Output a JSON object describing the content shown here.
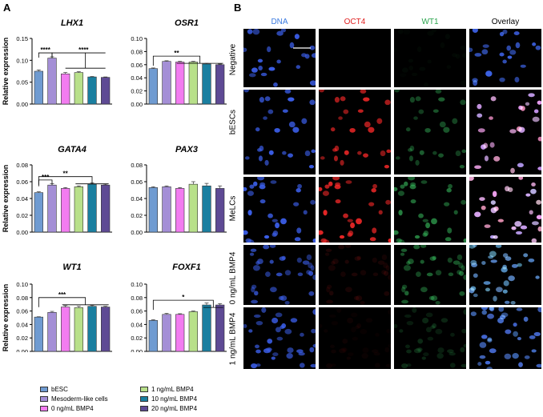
{
  "panel_a_label": "A",
  "panel_b_label": "B",
  "colors": {
    "bESC": "#6f9bd1",
    "Mesoderm-like cells": "#a48fd6",
    "0 ng/mL BMP4": "#f27cf0",
    "1 ng/mL BMP4": "#b8e08a",
    "10 ng/mL BMP4": "#1a7fa0",
    "20 ng/mL BMP4": "#5e4a94"
  },
  "legend": [
    "bESC",
    "Mesoderm-like cells",
    "0 ng/mL BMP4",
    "1 ng/mL BMP4",
    "10 ng/mL BMP4",
    "20 ng/mL BMP4"
  ],
  "chart_data": [
    {
      "type": "bar",
      "title": "LHX1",
      "ylabel": "Relative expression",
      "categories": [
        "bESC",
        "Mesoderm-like cells",
        "0 ng/mL BMP4",
        "1 ng/mL BMP4",
        "10 ng/mL BMP4",
        "20 ng/mL BMP4"
      ],
      "values": [
        0.075,
        0.105,
        0.069,
        0.072,
        0.062,
        0.061
      ],
      "errors": [
        0.003,
        0.003,
        0.003,
        0.002,
        0.001,
        0.001
      ],
      "ylim": [
        0,
        0.15
      ],
      "yticks": [
        "0.00",
        "0.05",
        "0.10",
        "0.15"
      ],
      "ytick_values": [
        0,
        0.05,
        0.1,
        0.15
      ],
      "annotations": [
        {
          "from": 0,
          "to": 1,
          "y": 0.117,
          "label": "****"
        },
        {
          "from": 1,
          "to": 5,
          "y": 0.117,
          "label": "****"
        }
      ]
    },
    {
      "type": "bar",
      "title": "OSR1",
      "ylabel": "",
      "categories": [
        "bESC",
        "Mesoderm-like cells",
        "0 ng/mL BMP4",
        "1 ng/mL BMP4",
        "10 ng/mL BMP4",
        "20 ng/mL BMP4"
      ],
      "values": [
        0.054,
        0.065,
        0.064,
        0.064,
        0.061,
        0.06
      ],
      "errors": [
        0.001,
        0.001,
        0.001,
        0.001,
        0.001,
        0.001
      ],
      "ylim": [
        0,
        0.1
      ],
      "yticks": [
        "0.00",
        "0.02",
        "0.04",
        "0.06",
        "0.08",
        "0.10"
      ],
      "ytick_values": [
        0,
        0.02,
        0.04,
        0.06,
        0.08,
        0.1
      ],
      "annotations": [
        {
          "from": 0,
          "to": 5,
          "y": 0.073,
          "label": "**"
        }
      ]
    },
    {
      "type": "bar",
      "title": "GATA4",
      "ylabel": "Relative expression",
      "categories": [
        "bESC",
        "Mesoderm-like cells",
        "0 ng/mL BMP4",
        "1 ng/mL BMP4",
        "10 ng/mL BMP4",
        "20 ng/mL BMP4"
      ],
      "values": [
        0.047,
        0.056,
        0.052,
        0.054,
        0.057,
        0.056
      ],
      "errors": [
        0.001,
        0.0015,
        0.001,
        0.001,
        0.0015,
        0.001
      ],
      "ylim": [
        0,
        0.08
      ],
      "yticks": [
        "0.00",
        "0.02",
        "0.04",
        "0.06",
        "0.08"
      ],
      "ytick_values": [
        0,
        0.02,
        0.04,
        0.06,
        0.08
      ],
      "annotations": [
        {
          "from": 0,
          "to": 1,
          "y": 0.062,
          "label": "***"
        },
        {
          "from": 0,
          "to": 5,
          "y": 0.066,
          "label": "**"
        }
      ]
    },
    {
      "type": "bar",
      "title": "PAX3",
      "ylabel": "",
      "categories": [
        "bESC",
        "Mesoderm-like cells",
        "0 ng/mL BMP4",
        "1 ng/mL BMP4",
        "10 ng/mL BMP4",
        "20 ng/mL BMP4"
      ],
      "values": [
        0.053,
        0.054,
        0.052,
        0.057,
        0.055,
        0.052
      ],
      "errors": [
        0.001,
        0.001,
        0.001,
        0.003,
        0.003,
        0.003
      ],
      "ylim": [
        0,
        0.08
      ],
      "yticks": [
        "0.00",
        "0.02",
        "0.04",
        "0.06",
        "0.08"
      ],
      "ytick_values": [
        0,
        0.02,
        0.04,
        0.06,
        0.08
      ],
      "annotations": []
    },
    {
      "type": "bar",
      "title": "WT1",
      "ylabel": "Relative expression",
      "categories": [
        "bESC",
        "Mesoderm-like cells",
        "0 ng/mL BMP4",
        "1 ng/mL BMP4",
        "10 ng/mL BMP4",
        "20 ng/mL BMP4"
      ],
      "values": [
        0.051,
        0.058,
        0.066,
        0.065,
        0.067,
        0.066
      ],
      "errors": [
        0.0005,
        0.0015,
        0.002,
        0.002,
        0.0015,
        0.001
      ],
      "ylim": [
        0,
        0.1
      ],
      "yticks": [
        "0.00",
        "0.02",
        "0.04",
        "0.06",
        "0.08",
        "0.10"
      ],
      "ytick_values": [
        0,
        0.02,
        0.04,
        0.06,
        0.08,
        0.1
      ],
      "annotations": [
        {
          "from": 0,
          "to": 5,
          "y": 0.08,
          "label": "***"
        }
      ]
    },
    {
      "type": "bar",
      "title": "FOXF1",
      "ylabel": "",
      "categories": [
        "bESC",
        "Mesoderm-like cells",
        "0 ng/mL BMP4",
        "1 ng/mL BMP4",
        "10 ng/mL BMP4",
        "20 ng/mL BMP4"
      ],
      "values": [
        0.046,
        0.055,
        0.055,
        0.059,
        0.069,
        0.069
      ],
      "errors": [
        0.001,
        0.0015,
        0.001,
        0.001,
        0.003,
        0.002
      ],
      "ylim": [
        0,
        0.1
      ],
      "yticks": [
        "0.00",
        "0.02",
        "0.04",
        "0.06",
        "0.08",
        "0.10"
      ],
      "ytick_values": [
        0,
        0.02,
        0.04,
        0.06,
        0.08,
        0.1
      ],
      "annotations": [
        {
          "from": 0,
          "to": 5,
          "y": 0.076,
          "label": "*"
        }
      ]
    }
  ],
  "microscopy": {
    "columns": [
      {
        "label": "DNA",
        "color": "#3b7be0"
      },
      {
        "label": "OCT4",
        "color": "#e02020"
      },
      {
        "label": "WT1",
        "color": "#2ca54f"
      },
      {
        "label": "Overlay",
        "color": "#000000"
      }
    ],
    "rows": [
      "Negative",
      "bESCs",
      "MeLCs",
      "0 ng/mL BMP4",
      "1 ng/mL BMP4"
    ]
  }
}
